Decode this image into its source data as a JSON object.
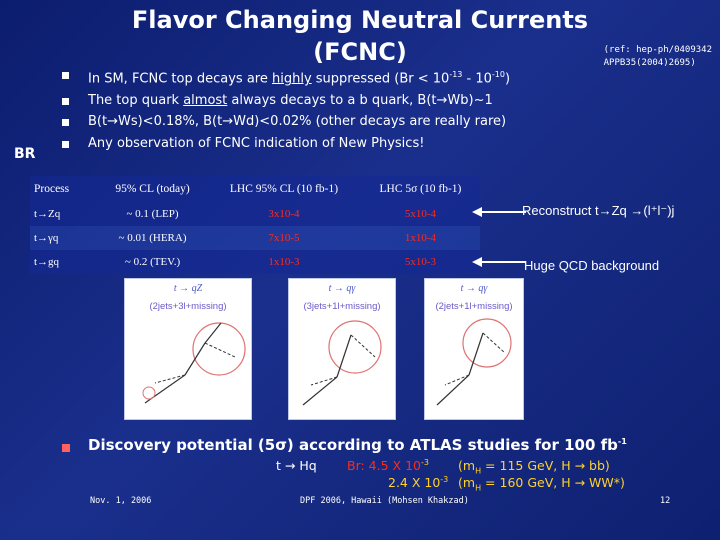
{
  "title": {
    "line1": "Flavor Changing Neutral Currents",
    "line2": "(FCNC)"
  },
  "reference": {
    "line1": "(ref: hep-ph/0409342",
    "line2": "APPB35(2004)2695)"
  },
  "bullets": [
    {
      "pre": "In SM, FCNC top decays are ",
      "u": "highly",
      "post": " suppressed (Br < 10",
      "e1": "-13",
      "mid": " - 10",
      "e2": "-10",
      "end": ")"
    },
    {
      "pre": "The top quark ",
      "u": "almost",
      "post": " always decays to a b quark, B(t→Wb)~1"
    },
    {
      "text": "B(t→Ws)<0.18%, B(t→Wd)<0.02% (other decays are really rare)"
    },
    {
      "text": "Any observation of FCNC indication of New Physics!"
    }
  ],
  "br_label": "BR",
  "table": {
    "headers": [
      "Process",
      "95% CL (today)",
      "LHC 95% CL (10 fb-1)",
      "LHC 5σ (10 fb-1)"
    ],
    "rows": [
      {
        "process": "t→Zq",
        "today": "~ 0.1 (LEP)",
        "cl95": "3x10-4",
        "s5": "5x10-4"
      },
      {
        "process": "t→γq",
        "today": "~ 0.01 (HERA)",
        "cl95": "7x10-5",
        "s5": "1x10-4"
      },
      {
        "process": "t→gq",
        "today": "~ 0.2 (TEV.)",
        "cl95": "1x10-3",
        "s5": "5x10-3"
      }
    ]
  },
  "notes": {
    "reconstruct": "Reconstruct t→Zq →(l⁺l⁻)j",
    "qcd": "Huge QCD background"
  },
  "diagrams": [
    {
      "process": "t → qZ",
      "state": "(2jets+3l+missing)"
    },
    {
      "process": "t → qγ",
      "state": "(3jets+1l+missing)"
    },
    {
      "process": "t → qγ",
      "state": "(2jets+1l+missing)"
    }
  ],
  "discovery": {
    "text": "Discovery potential (5σ) according to ATLAS studies for 100 fb",
    "sup": "-1",
    "decay": "t → Hq",
    "br1_label": "Br: 4.5 X 10",
    "br1_exp": "-3",
    "br1_cond": "(m",
    "br1_cond2": " = 115 GeV, H → bb)",
    "br2_label": "2.4 X 10",
    "br2_exp": "-3",
    "br2_cond": "(m",
    "br2_cond2": " = 160 GeV, H → WW*)"
  },
  "footer": {
    "date": "Nov. 1, 2006",
    "conference": "DPF 2006, Hawaii (Mohsen Khakzad)",
    "page": "12"
  },
  "colors": {
    "accent_red": "#ff2a1a",
    "yellow": "#ffd22a",
    "background": "#1a2f8c"
  }
}
